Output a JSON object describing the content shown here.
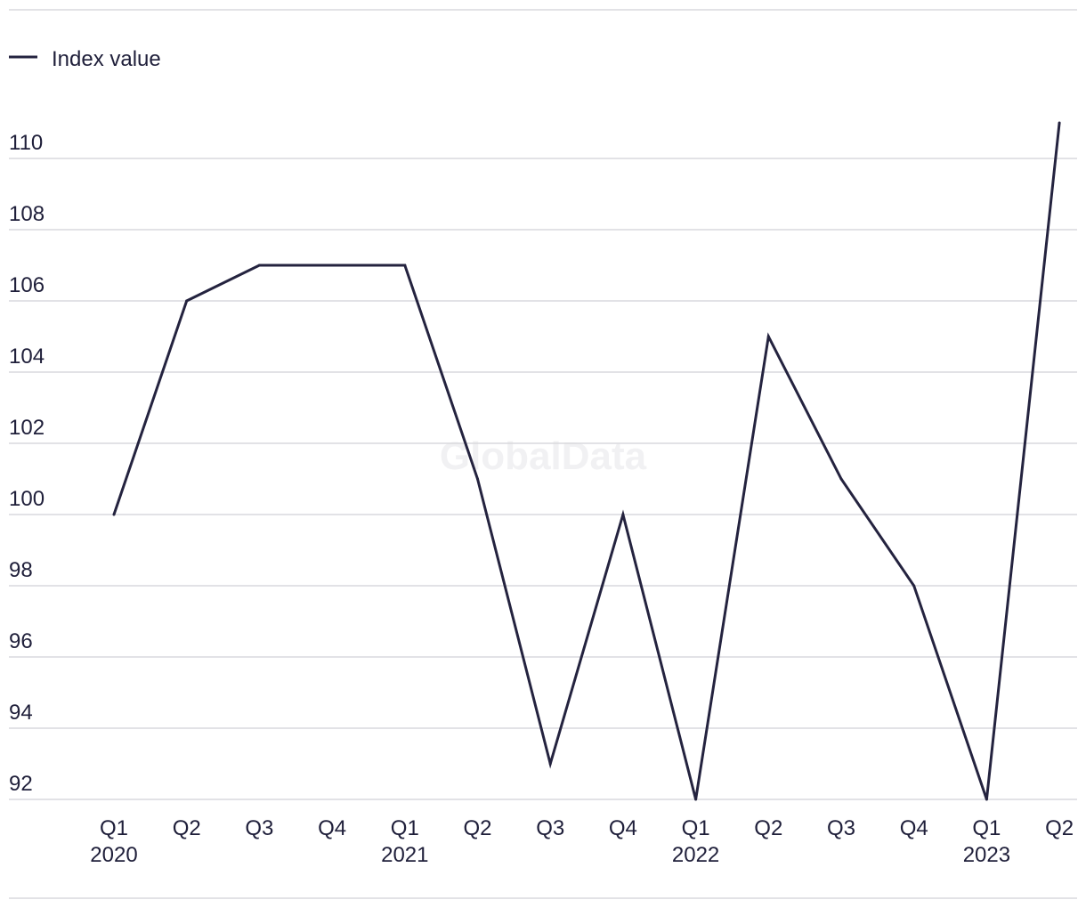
{
  "watermark": "GlobalData",
  "chart_data": {
    "type": "line",
    "title": "",
    "xlabel": "",
    "ylabel": "",
    "legend_position": "top-left",
    "grid": true,
    "ylim": [
      92,
      110
    ],
    "yticks": [
      92,
      94,
      96,
      98,
      100,
      102,
      104,
      106,
      108,
      110
    ],
    "categories": [
      {
        "quarter": "Q1",
        "year": "2020"
      },
      {
        "quarter": "Q2",
        "year": ""
      },
      {
        "quarter": "Q3",
        "year": ""
      },
      {
        "quarter": "Q4",
        "year": ""
      },
      {
        "quarter": "Q1",
        "year": "2021"
      },
      {
        "quarter": "Q2",
        "year": ""
      },
      {
        "quarter": "Q3",
        "year": ""
      },
      {
        "quarter": "Q4",
        "year": ""
      },
      {
        "quarter": "Q1",
        "year": "2022"
      },
      {
        "quarter": "Q2",
        "year": ""
      },
      {
        "quarter": "Q3",
        "year": ""
      },
      {
        "quarter": "Q4",
        "year": ""
      },
      {
        "quarter": "Q1",
        "year": "2023"
      },
      {
        "quarter": "Q2",
        "year": ""
      }
    ],
    "series": [
      {
        "name": "Index value",
        "color": "#24233f",
        "values": [
          100,
          106,
          107,
          107,
          107,
          101,
          93,
          100,
          92,
          105,
          101,
          98,
          92,
          111
        ]
      }
    ]
  }
}
